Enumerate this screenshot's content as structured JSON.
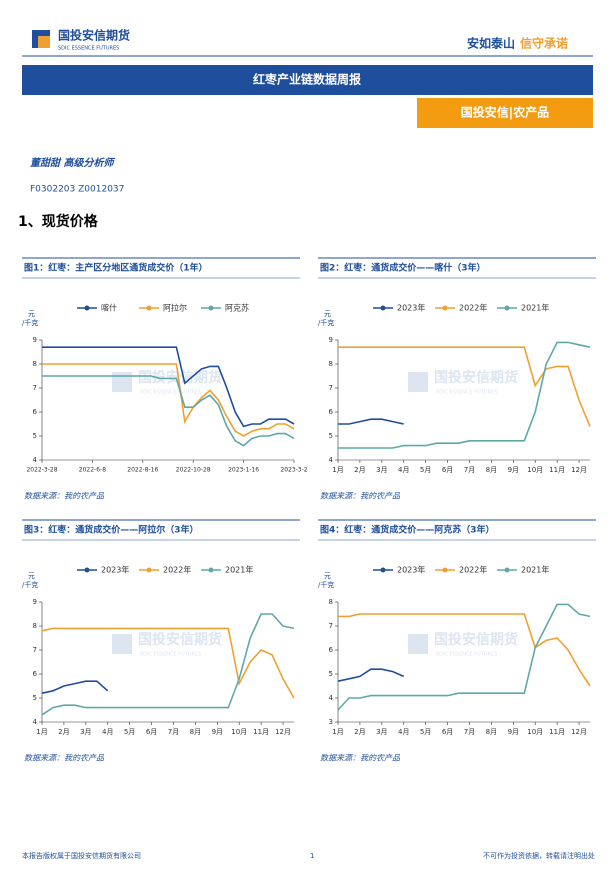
{
  "header": {
    "logo_name": "国投安信期货",
    "logo_sub": "SDIC ESSENCE FUTURES",
    "slogan_a": "安如泰山",
    "slogan_b": "信守承诺",
    "banner": "红枣产业链数据周报",
    "tag": "国投安信|农产品"
  },
  "author": {
    "name": "董甜甜 高级分析师",
    "ids": "F0302203 Z0012037"
  },
  "section": "1、现货价格",
  "watermark": {
    "name": "国投安信期货",
    "sub": "SDIC ESSENCE FUTURES"
  },
  "chart_data": [
    {
      "type": "line",
      "title": "图1：红枣：主产区分地区通货成交价（1年）",
      "source": "数据来源：我的农产品",
      "ylabel": [
        "元",
        "/千克"
      ],
      "categories": [
        "2022-3-28",
        null,
        null,
        null,
        null,
        null,
        "2022-6-8",
        null,
        null,
        null,
        null,
        null,
        "2022-8-16",
        null,
        null,
        null,
        null,
        null,
        "2022-10-28",
        null,
        null,
        null,
        null,
        null,
        "2023-1-16",
        null,
        null,
        null,
        null,
        null,
        "2023-3-2"
      ],
      "ylim": [
        4,
        9
      ],
      "yticks": [
        4,
        5,
        6,
        7,
        8,
        9
      ],
      "series": [
        {
          "name": "喀什",
          "color": "#1f4e9c",
          "values": [
            8.7,
            8.7,
            8.7,
            8.7,
            8.7,
            8.7,
            8.7,
            8.7,
            8.7,
            8.7,
            8.7,
            8.7,
            8.7,
            8.7,
            8.7,
            8.7,
            8.7,
            7.2,
            7.5,
            7.8,
            7.9,
            7.9,
            7.0,
            6.0,
            5.4,
            5.5,
            5.5,
            5.7,
            5.7,
            5.7,
            5.5
          ]
        },
        {
          "name": "阿拉尔",
          "color": "#f0a030",
          "values": [
            8.0,
            8.0,
            8.0,
            8.0,
            8.0,
            8.0,
            8.0,
            8.0,
            8.0,
            8.0,
            8.0,
            8.0,
            8.0,
            8.0,
            8.0,
            8.0,
            8.0,
            5.6,
            6.2,
            6.6,
            6.9,
            6.5,
            5.8,
            5.2,
            5.0,
            5.2,
            5.3,
            5.3,
            5.5,
            5.5,
            5.3
          ]
        },
        {
          "name": "阿克苏",
          "color": "#5fa8a8",
          "values": [
            7.5,
            7.5,
            7.5,
            7.5,
            7.5,
            7.5,
            7.5,
            7.5,
            7.5,
            7.5,
            7.5,
            7.5,
            7.5,
            7.5,
            7.4,
            7.4,
            7.4,
            6.2,
            6.2,
            6.5,
            6.7,
            6.3,
            5.4,
            4.8,
            4.6,
            4.9,
            5.0,
            5.0,
            5.1,
            5.1,
            4.9
          ]
        }
      ]
    },
    {
      "type": "line",
      "title": "图2：红枣：通货成交价——喀什（3年）",
      "source": "数据来源：我的农产品",
      "ylabel": [
        "元",
        "/千克"
      ],
      "categories": [
        "1月",
        null,
        "2月",
        null,
        "3月",
        null,
        "4月",
        null,
        "5月",
        null,
        "6月",
        null,
        "7月",
        null,
        "8月",
        null,
        "9月",
        null,
        "10月",
        null,
        "11月",
        null,
        "12月",
        null
      ],
      "ylim": [
        4,
        9
      ],
      "yticks": [
        4,
        5,
        6,
        7,
        8,
        9
      ],
      "series": [
        {
          "name": "2023年",
          "color": "#1f4e9c",
          "values": [
            5.5,
            5.5,
            5.6,
            5.7,
            5.7,
            5.6,
            5.5,
            null,
            null,
            null,
            null,
            null,
            null,
            null,
            null,
            null,
            null,
            null,
            null,
            null,
            null,
            null,
            null,
            null
          ]
        },
        {
          "name": "2022年",
          "color": "#f0a030",
          "values": [
            8.7,
            8.7,
            8.7,
            8.7,
            8.7,
            8.7,
            8.7,
            8.7,
            8.7,
            8.7,
            8.7,
            8.7,
            8.7,
            8.7,
            8.7,
            8.7,
            8.7,
            8.7,
            7.1,
            7.8,
            7.9,
            7.9,
            6.5,
            5.4
          ]
        },
        {
          "name": "2021年",
          "color": "#5fa8a8",
          "values": [
            4.5,
            4.5,
            4.5,
            4.5,
            4.5,
            4.5,
            4.6,
            4.6,
            4.6,
            4.7,
            4.7,
            4.7,
            4.8,
            4.8,
            4.8,
            4.8,
            4.8,
            4.8,
            6.0,
            8.0,
            8.9,
            8.9,
            8.8,
            8.7
          ]
        }
      ]
    },
    {
      "type": "line",
      "title": "图3：红枣：通货成交价——阿拉尔（3年）",
      "source": "数据来源：我的农产品",
      "ylabel": [
        "元",
        "/千克"
      ],
      "categories": [
        "1月",
        null,
        "2月",
        null,
        "3月",
        null,
        "4月",
        null,
        "5月",
        null,
        "6月",
        null,
        "7月",
        null,
        "8月",
        null,
        "9月",
        null,
        "10月",
        null,
        "11月",
        null,
        "12月",
        null
      ],
      "ylim": [
        4,
        9
      ],
      "yticks": [
        4,
        5,
        6,
        7,
        8,
        9
      ],
      "series": [
        {
          "name": "2023年",
          "color": "#1f4e9c",
          "values": [
            5.2,
            5.3,
            5.5,
            5.6,
            5.7,
            5.7,
            5.3,
            null,
            null,
            null,
            null,
            null,
            null,
            null,
            null,
            null,
            null,
            null,
            null,
            null,
            null,
            null,
            null,
            null
          ]
        },
        {
          "name": "2022年",
          "color": "#f0a030",
          "values": [
            7.8,
            7.9,
            7.9,
            7.9,
            7.9,
            7.9,
            7.9,
            7.9,
            7.9,
            7.9,
            7.9,
            7.9,
            7.9,
            7.9,
            7.9,
            7.9,
            7.9,
            7.9,
            5.6,
            6.5,
            7.0,
            6.8,
            5.8,
            5.0
          ]
        },
        {
          "name": "2021年",
          "color": "#5fa8a8",
          "values": [
            4.3,
            4.6,
            4.7,
            4.7,
            4.6,
            4.6,
            4.6,
            4.6,
            4.6,
            4.6,
            4.6,
            4.6,
            4.6,
            4.6,
            4.6,
            4.6,
            4.6,
            4.6,
            5.8,
            7.5,
            8.5,
            8.5,
            8.0,
            7.9
          ]
        }
      ]
    },
    {
      "type": "line",
      "title": "图4：红枣：通货成交价——阿克苏（3年）",
      "source": "数据来源：我的农产品",
      "ylabel": [
        "元",
        "/千克"
      ],
      "categories": [
        "1月",
        null,
        "2月",
        null,
        "3月",
        null,
        "4月",
        null,
        "5月",
        null,
        "6月",
        null,
        "7月",
        null,
        "8月",
        null,
        "9月",
        null,
        "10月",
        null,
        "11月",
        null,
        "12月",
        null
      ],
      "ylim": [
        3,
        8
      ],
      "yticks": [
        3,
        4,
        5,
        6,
        7,
        8
      ],
      "series": [
        {
          "name": "2023年",
          "color": "#1f4e9c",
          "values": [
            4.7,
            4.8,
            4.9,
            5.2,
            5.2,
            5.1,
            4.9,
            null,
            null,
            null,
            null,
            null,
            null,
            null,
            null,
            null,
            null,
            null,
            null,
            null,
            null,
            null,
            null,
            null
          ]
        },
        {
          "name": "2022年",
          "color": "#f0a030",
          "values": [
            7.4,
            7.4,
            7.5,
            7.5,
            7.5,
            7.5,
            7.5,
            7.5,
            7.5,
            7.5,
            7.5,
            7.5,
            7.5,
            7.5,
            7.5,
            7.5,
            7.5,
            7.5,
            6.1,
            6.4,
            6.5,
            6.0,
            5.2,
            4.5
          ]
        },
        {
          "name": "2021年",
          "color": "#5fa8a8",
          "values": [
            3.5,
            4.0,
            4.0,
            4.1,
            4.1,
            4.1,
            4.1,
            4.1,
            4.1,
            4.1,
            4.1,
            4.2,
            4.2,
            4.2,
            4.2,
            4.2,
            4.2,
            4.2,
            6.1,
            7.0,
            7.9,
            7.9,
            7.5,
            7.4
          ]
        }
      ]
    }
  ],
  "footer": {
    "left": "本报告版权属于国投安信期货有限公司",
    "page": "1",
    "right": "不可作为投资依据，转载请注明出处"
  }
}
